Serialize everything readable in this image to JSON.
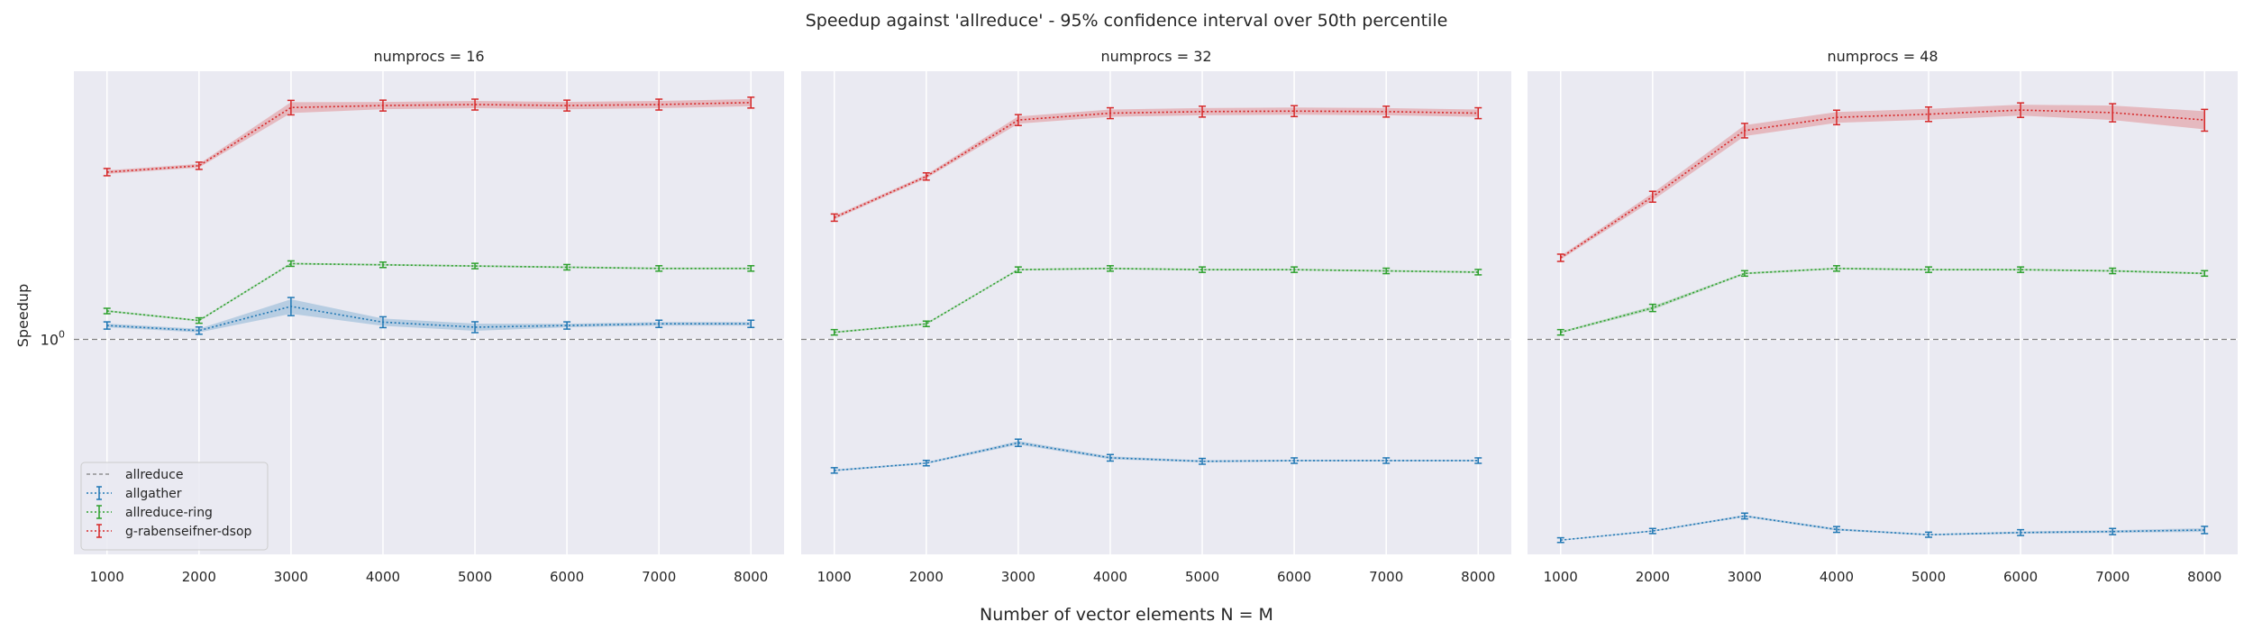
{
  "figure": {
    "title": "Speedup against 'allreduce' - 95% confidence interval over 50th percentile",
    "xlabel": "Number of vector elements N = M",
    "ylabel": "Speedup",
    "ytick_label": "10",
    "ytick_exp": "0"
  },
  "colors": {
    "allreduce": "#7f7f7f",
    "allgather": "#1f77b4",
    "allreduce-ring": "#2ca02c",
    "g-rabenseifner-dsop": "#d62728",
    "panel_bg": "#eaeaf2",
    "grid": "#ffffff"
  },
  "legend": {
    "location": "lower-left",
    "entries": [
      "allreduce",
      "allgather",
      "allreduce-ring",
      "g-rabenseifner-dsop"
    ]
  },
  "chart_data": [
    {
      "type": "line",
      "title": "numprocs = 16",
      "x": [
        1000,
        2000,
        3000,
        4000,
        5000,
        6000,
        7000,
        8000
      ],
      "xlabel": "Number of vector elements N = M",
      "ylabel": "Speedup",
      "yscale": "log",
      "grid": true,
      "baseline": {
        "name": "allreduce",
        "value": 1.0,
        "style": "dashed"
      },
      "series": [
        {
          "name": "allgather",
          "values": [
            1.08,
            1.05,
            1.2,
            1.1,
            1.07,
            1.08,
            1.09,
            1.09
          ],
          "ci": [
            0.01,
            0.01,
            0.04,
            0.02,
            0.02,
            0.01,
            0.01,
            0.01
          ]
        },
        {
          "name": "allreduce-ring",
          "values": [
            1.17,
            1.11,
            1.52,
            1.51,
            1.5,
            1.49,
            1.48,
            1.48
          ],
          "ci": [
            0.005,
            0.005,
            0.005,
            0.005,
            0.005,
            0.005,
            0.005,
            0.005
          ]
        },
        {
          "name": "g-rabenseifner-dsop",
          "values": [
            2.52,
            2.61,
            3.6,
            3.64,
            3.66,
            3.64,
            3.66,
            3.7
          ],
          "ci": [
            0.01,
            0.01,
            0.03,
            0.02,
            0.02,
            0.02,
            0.02,
            0.02
          ]
        }
      ]
    },
    {
      "type": "line",
      "title": "numprocs = 32",
      "x": [
        1000,
        2000,
        3000,
        4000,
        5000,
        6000,
        7000,
        8000
      ],
      "xlabel": "Number of vector elements N = M",
      "ylabel": "Speedup",
      "yscale": "log",
      "grid": true,
      "baseline": {
        "name": "allreduce",
        "value": 1.0,
        "style": "dashed"
      },
      "series": [
        {
          "name": "allgather",
          "values": [
            0.485,
            0.505,
            0.565,
            0.52,
            0.51,
            0.512,
            0.512,
            0.512
          ],
          "ci": [
            0.005,
            0.005,
            0.01,
            0.008,
            0.006,
            0.005,
            0.005,
            0.005
          ]
        },
        {
          "name": "allreduce-ring",
          "values": [
            1.04,
            1.09,
            1.47,
            1.48,
            1.47,
            1.47,
            1.46,
            1.45
          ],
          "ci": [
            0.005,
            0.005,
            0.005,
            0.005,
            0.005,
            0.005,
            0.005,
            0.005
          ]
        },
        {
          "name": "g-rabenseifner-dsop",
          "values": [
            1.96,
            2.46,
            3.36,
            3.49,
            3.52,
            3.53,
            3.52,
            3.49
          ],
          "ci": [
            0.01,
            0.01,
            0.02,
            0.02,
            0.02,
            0.02,
            0.02,
            0.02
          ]
        }
      ]
    },
    {
      "type": "line",
      "title": "numprocs = 48",
      "x": [
        1000,
        2000,
        3000,
        4000,
        5000,
        6000,
        7000,
        8000
      ],
      "xlabel": "Number of vector elements N = M",
      "ylabel": "Speedup",
      "yscale": "log",
      "grid": true,
      "baseline": {
        "name": "allreduce",
        "value": 1.0,
        "style": "dashed"
      },
      "series": [
        {
          "name": "allgather",
          "values": [
            0.33,
            0.347,
            0.377,
            0.35,
            0.34,
            0.344,
            0.346,
            0.349
          ],
          "ci": [
            0.003,
            0.004,
            0.006,
            0.006,
            0.004,
            0.006,
            0.007,
            0.01
          ]
        },
        {
          "name": "allreduce-ring",
          "values": [
            1.04,
            1.19,
            1.44,
            1.48,
            1.47,
            1.47,
            1.46,
            1.44
          ],
          "ci": [
            0.005,
            0.01,
            0.005,
            0.005,
            0.005,
            0.005,
            0.005,
            0.005
          ]
        },
        {
          "name": "g-rabenseifner-dsop",
          "values": [
            1.57,
            2.2,
            3.17,
            3.41,
            3.47,
            3.55,
            3.5,
            3.36
          ],
          "ci": [
            0.01,
            0.02,
            0.03,
            0.03,
            0.03,
            0.03,
            0.04,
            0.05
          ]
        }
      ]
    }
  ]
}
